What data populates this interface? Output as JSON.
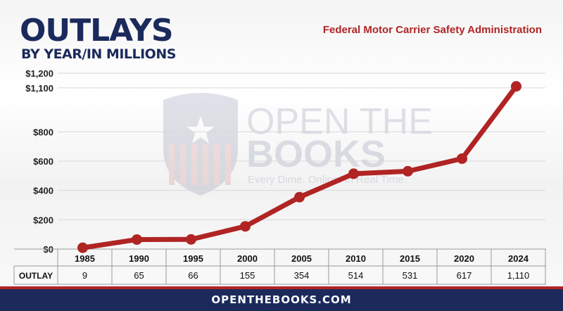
{
  "header": {
    "title": "OUTLAYS",
    "subtitle": "BY YEAR/IN MILLIONS",
    "agency": "Federal Motor Carrier Safety Administration"
  },
  "watermark": {
    "line1": "OPEN THE",
    "line2": "BOOKS",
    "tagline": "Every Dime. Online. In Real Time."
  },
  "footer": {
    "site": "OPENTHEBOOKS.COM"
  },
  "colors": {
    "line": "#b02423",
    "navy": "#1b2a5b",
    "accent_red": "#b02423"
  },
  "chart_data": {
    "type": "line",
    "x": [
      "1985",
      "1990",
      "1995",
      "2000",
      "2005",
      "2010",
      "2015",
      "2020",
      "2024"
    ],
    "series": [
      {
        "name": "OUTLAY",
        "values": [
          9,
          65,
          66,
          155,
          354,
          514,
          531,
          617,
          1110
        ]
      }
    ],
    "y_ticks": [
      {
        "value": 0,
        "label": "$0"
      },
      {
        "value": 200,
        "label": "$200"
      },
      {
        "value": 400,
        "label": "$400"
      },
      {
        "value": 600,
        "label": "$600"
      },
      {
        "value": 800,
        "label": "$800"
      },
      {
        "value": 1100,
        "label": "$1,100"
      },
      {
        "value": 1200,
        "label": "$1,200"
      }
    ],
    "ylim": [
      0,
      1200
    ],
    "grid": true,
    "table": {
      "row_label": "OUTLAY",
      "cells": [
        "9",
        "65",
        "66",
        "155",
        "354",
        "514",
        "531",
        "617",
        "1,110"
      ]
    }
  }
}
